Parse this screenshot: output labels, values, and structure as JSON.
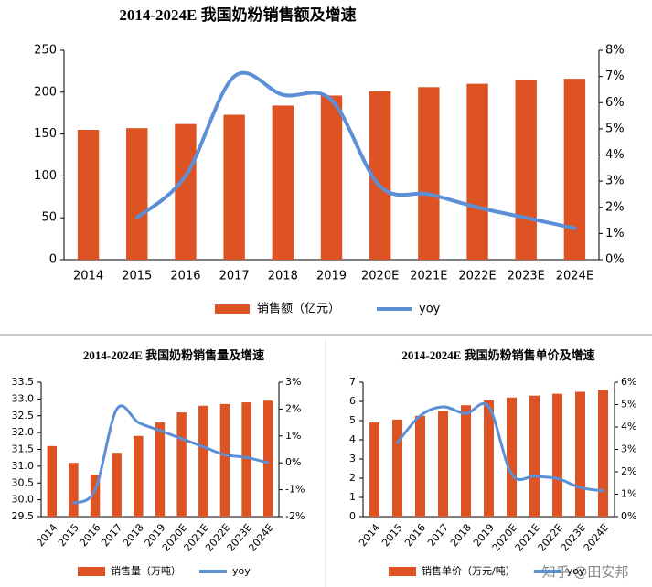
{
  "chart_data": [
    {
      "type": "bar-line",
      "title": "2014-2024E 我国奶粉销售额及增速",
      "categories": [
        "2014",
        "2015",
        "2016",
        "2017",
        "2018",
        "2019",
        "2020E",
        "2021E",
        "2022E",
        "2023E",
        "2024E"
      ],
      "series": [
        {
          "name": "销售额（亿元）",
          "color": "#dd5324",
          "values": [
            155,
            157,
            162,
            173,
            184,
            196,
            201,
            206,
            210,
            214,
            216
          ]
        },
        {
          "name": "yoy",
          "color": "#5b8fd6",
          "axis": "y2",
          "values": [
            null,
            1.6,
            3.2,
            7.0,
            6.3,
            6.1,
            2.8,
            2.5,
            2.0,
            1.6,
            1.2
          ]
        }
      ],
      "ylim": [
        0,
        250
      ],
      "yticks": [
        0,
        50,
        100,
        150,
        200,
        250
      ],
      "y2lim": [
        0,
        8
      ],
      "y2ticks": [
        {
          "value": 0,
          "label": "0%"
        },
        {
          "value": 1,
          "label": "1%"
        },
        {
          "value": 2,
          "label": "2%"
        },
        {
          "value": 3,
          "label": "3%"
        },
        {
          "value": 4,
          "label": "4%"
        },
        {
          "value": 5,
          "label": "5%"
        },
        {
          "value": 6,
          "label": "6%"
        },
        {
          "value": 7,
          "label": "7%"
        },
        {
          "value": 8,
          "label": "8%"
        }
      ]
    },
    {
      "type": "bar-line",
      "title": "2014-2024E 我国奶粉销售量及增速",
      "categories": [
        "2014",
        "2015",
        "2016",
        "2017",
        "2018",
        "2019",
        "2020E",
        "2021E",
        "2022E",
        "2023E",
        "2024E"
      ],
      "series": [
        {
          "name": "销售量（万吨）",
          "color": "#dd5324",
          "values": [
            31.6,
            31.1,
            30.75,
            31.4,
            31.9,
            32.3,
            32.6,
            32.8,
            32.85,
            32.9,
            32.95
          ]
        },
        {
          "name": "yoy",
          "color": "#5b8fd6",
          "axis": "y2",
          "values": [
            null,
            -1.5,
            -1.0,
            2.0,
            1.5,
            1.2,
            0.9,
            0.6,
            0.3,
            0.2,
            0.0
          ]
        }
      ],
      "ylim": [
        29.5,
        33.5
      ],
      "yticks": [
        29.5,
        {
          "value": 30,
          "label": "30.0"
        },
        30.5,
        {
          "value": 31,
          "label": "31.0"
        },
        31.5,
        {
          "value": 32,
          "label": "32.0"
        },
        32.5,
        {
          "value": 33,
          "label": "33.0"
        },
        33.5
      ],
      "y2lim": [
        -2,
        3
      ],
      "y2ticks": [
        {
          "value": -2,
          "label": "-2%"
        },
        {
          "value": -1,
          "label": "-1%"
        },
        {
          "value": 0,
          "label": "0%"
        },
        {
          "value": 1,
          "label": "1%"
        },
        {
          "value": 2,
          "label": "2%"
        },
        {
          "value": 3,
          "label": "3%"
        }
      ]
    },
    {
      "type": "bar-line",
      "title": "2014-2024E 我国奶粉销售单价及增速",
      "categories": [
        "2014",
        "2015",
        "2016",
        "2017",
        "2018",
        "2019",
        "2020E",
        "2021E",
        "2022E",
        "2023E",
        "2024E"
      ],
      "series": [
        {
          "name": "销售单价（万元/吨）",
          "color": "#dd5324",
          "values": [
            4.9,
            5.05,
            5.25,
            5.5,
            5.8,
            6.05,
            6.2,
            6.3,
            6.4,
            6.5,
            6.6
          ]
        },
        {
          "name": "yoy",
          "color": "#5b8fd6",
          "axis": "y2",
          "values": [
            null,
            3.3,
            4.5,
            4.9,
            4.6,
            4.9,
            1.9,
            1.8,
            1.7,
            1.3,
            1.15
          ]
        }
      ],
      "ylim": [
        0,
        7
      ],
      "yticks": [
        0,
        1,
        2,
        3,
        4,
        5,
        6,
        7
      ],
      "y2lim": [
        0,
        6
      ],
      "y2ticks": [
        {
          "value": 0,
          "label": "0%"
        },
        {
          "value": 1,
          "label": "1%"
        },
        {
          "value": 2,
          "label": "2%"
        },
        {
          "value": 3,
          "label": "3%"
        },
        {
          "value": 4,
          "label": "4%"
        },
        {
          "value": 5,
          "label": "5%"
        },
        {
          "value": 6,
          "label": "6%"
        }
      ]
    }
  ],
  "watermark": "知乎 @田安邦"
}
